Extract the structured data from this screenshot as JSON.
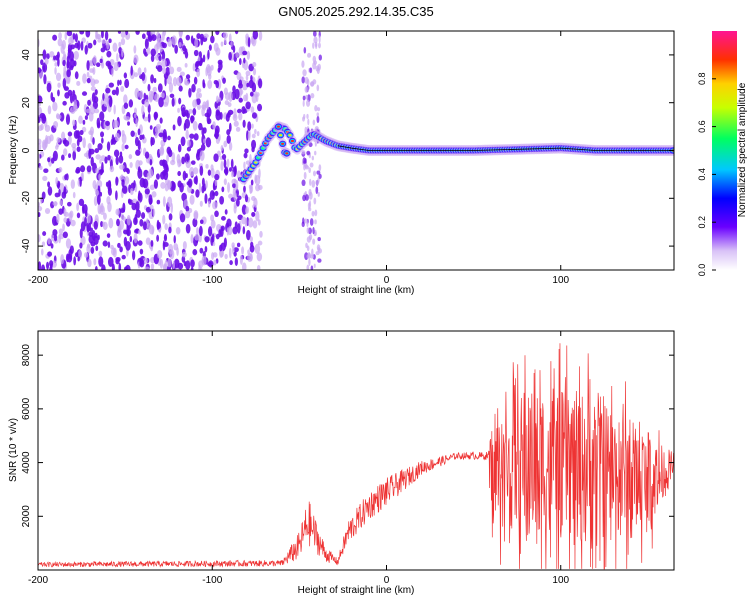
{
  "title": "GN05.2025.292.14.35.C35",
  "colors": {
    "line": "#ee3333",
    "dot": "#6a0de6",
    "dotLight": "#c9a6f2"
  },
  "chart_data": [
    {
      "type": "heatmap",
      "name": "spectrogram",
      "xlabel": "Height of straight line (km)",
      "ylabel": "Frequency (Hz)",
      "xlim": [
        -200,
        165
      ],
      "ylim": [
        -50,
        50
      ],
      "xticks": [
        "-200",
        "-100",
        "0",
        "100"
      ],
      "yticks": [
        "-40",
        "-20",
        "0",
        "20",
        "40"
      ],
      "noise_region_x": [
        -200,
        -72
      ],
      "noise_band_x": [
        -48,
        -38
      ],
      "signal": {
        "arc": [
          [
            -82,
            -12
          ],
          [
            -75,
            -5
          ],
          [
            -68,
            5
          ],
          [
            -62,
            10
          ],
          [
            -58,
            9
          ],
          [
            -55,
            6
          ],
          [
            -52,
            0
          ],
          [
            -48,
            3
          ],
          [
            -42,
            7
          ],
          [
            -35,
            4
          ],
          [
            -28,
            2
          ],
          [
            -20,
            1
          ],
          [
            -10,
            0
          ],
          [
            0,
            0
          ],
          [
            10,
            0
          ],
          [
            50,
            0
          ],
          [
            100,
            1
          ],
          [
            120,
            0
          ],
          [
            165,
            0
          ]
        ],
        "lower_branch": [
          [
            -62,
            10
          ],
          [
            -60,
            4
          ],
          [
            -58,
            -2
          ],
          [
            -56,
            0
          ]
        ]
      },
      "colorbar": {
        "label": "Normalized spectral amplitude",
        "range": [
          0,
          1
        ],
        "ticks": [
          "0.0",
          "0.2",
          "0.4",
          "0.6",
          "0.8"
        ]
      }
    },
    {
      "type": "line",
      "name": "snr",
      "xlabel": "Height of straight line (km)",
      "ylabel": "SNR (10 * v/v)",
      "xlim": [
        -200,
        165
      ],
      "ylim": [
        0,
        8900
      ],
      "xticks": [
        "-200",
        "-100",
        "0",
        "100"
      ],
      "yticks": [
        "2000",
        "4000",
        "6000",
        "8000"
      ],
      "envelope": [
        {
          "x": -200,
          "base": 200,
          "amp": 150
        },
        {
          "x": -60,
          "base": 250,
          "amp": 200
        },
        {
          "x": -50,
          "base": 900,
          "amp": 900
        },
        {
          "x": -45,
          "base": 1800,
          "amp": 1500
        },
        {
          "x": -40,
          "base": 1200,
          "amp": 1000
        },
        {
          "x": -35,
          "base": 600,
          "amp": 500
        },
        {
          "x": -28,
          "base": 300,
          "amp": 200
        },
        {
          "x": -22,
          "base": 1400,
          "amp": 800
        },
        {
          "x": -10,
          "base": 2400,
          "amp": 900
        },
        {
          "x": 0,
          "base": 2900,
          "amp": 900
        },
        {
          "x": 20,
          "base": 3800,
          "amp": 450
        },
        {
          "x": 40,
          "base": 4250,
          "amp": 200
        },
        {
          "x": 58,
          "base": 4250,
          "amp": 250
        },
        {
          "x": 60,
          "base": 3500,
          "amp": 3200
        },
        {
          "x": 80,
          "base": 4000,
          "amp": 4500
        },
        {
          "x": 120,
          "base": 3900,
          "amp": 4600
        },
        {
          "x": 150,
          "base": 3200,
          "amp": 3000
        },
        {
          "x": 165,
          "base": 3900,
          "amp": 800
        }
      ]
    }
  ]
}
